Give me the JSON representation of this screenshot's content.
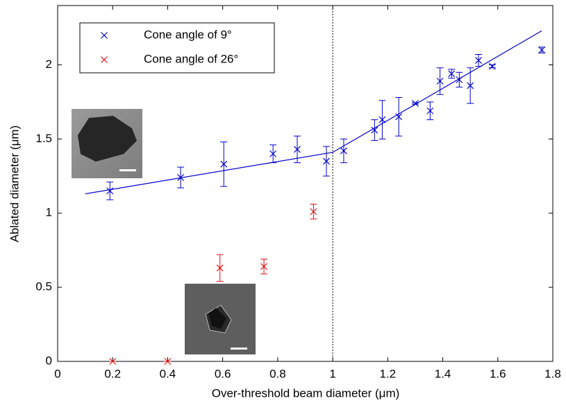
{
  "chart_data": {
    "type": "scatter",
    "x_label": "Over-threshold beam diameter (μm)",
    "y_label": "Ablated diameter (μm)",
    "xlim": [
      0,
      1.8
    ],
    "ylim": [
      0,
      2.4
    ],
    "xticks": [
      0,
      0.2,
      0.4,
      0.6,
      0.8,
      1,
      1.2,
      1.4,
      1.6,
      1.8
    ],
    "yticks": [
      0,
      0.5,
      1,
      1.5,
      2
    ],
    "vline": 1,
    "series": [
      {
        "name": "Cone angle of 9°",
        "color": "#0000cc",
        "x": [
          0.19,
          0.447,
          0.604,
          0.783,
          0.871,
          0.977,
          1.04,
          1.152,
          1.18,
          1.24,
          1.3,
          1.354,
          1.39,
          1.432,
          1.46,
          1.5,
          1.53,
          1.58,
          1.76
        ],
        "values": [
          1.15,
          1.24,
          1.33,
          1.4,
          1.43,
          1.35,
          1.42,
          1.56,
          1.63,
          1.65,
          1.74,
          1.69,
          1.89,
          1.94,
          1.9,
          1.86,
          2.03,
          1.99,
          2.1
        ],
        "errors": [
          0.06,
          0.07,
          0.15,
          0.06,
          0.09,
          0.1,
          0.08,
          0.07,
          0.13,
          0.13,
          0.005,
          0.06,
          0.09,
          0.03,
          0.05,
          0.12,
          0.04,
          0.01,
          0.02
        ]
      },
      {
        "name": "Cone angle of 26°",
        "color": "#dd1111",
        "x": [
          0.2,
          0.4,
          0.59,
          0.75,
          0.93
        ],
        "values": [
          0,
          0,
          0.63,
          0.64,
          1.01
        ],
        "errors": [
          0,
          0,
          0.09,
          0.05,
          0.05
        ]
      }
    ],
    "fit_line": {
      "color": "#0000cc",
      "x": [
        0.1,
        1.0,
        1.76
      ],
      "values": [
        1.13,
        1.41,
        2.23
      ]
    }
  }
}
